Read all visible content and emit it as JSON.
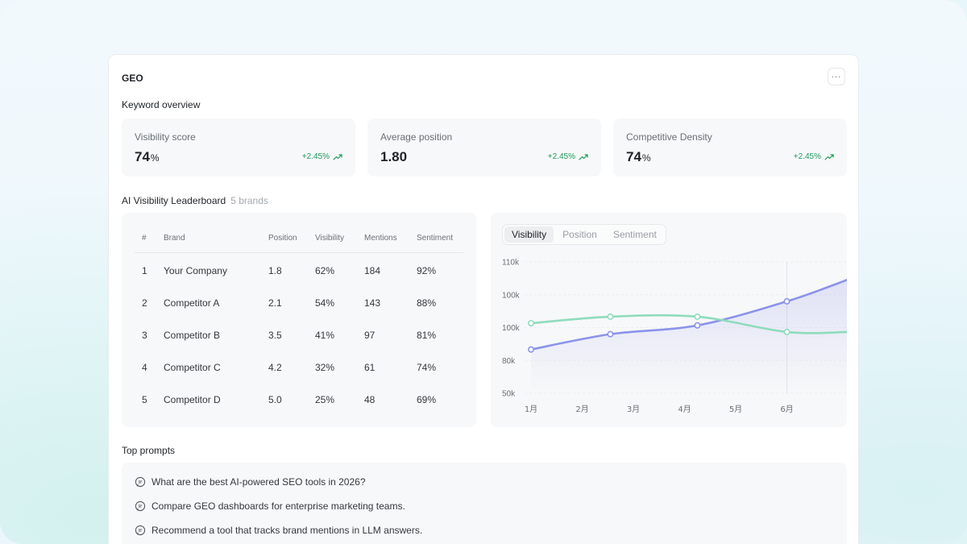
{
  "card": {
    "title": "GEO",
    "more_label": "···"
  },
  "keyword_overview": {
    "title": "Keyword overview",
    "stats": [
      {
        "label": "Visibility score",
        "value": "74",
        "unit": "%",
        "change": "+2.45%"
      },
      {
        "label": "Average position",
        "value": "1.80",
        "unit": "",
        "change": "+2.45%"
      },
      {
        "label": "Competitive Density",
        "value": "74",
        "unit": "%",
        "change": "+2.45%"
      }
    ]
  },
  "leaderboard": {
    "title": "AI Visibility Leaderboard",
    "subtitle": "5 brands",
    "columns": [
      "#",
      "Brand",
      "Position",
      "Visibility",
      "Mentions",
      "Sentiment"
    ],
    "rows": [
      {
        "num": "1",
        "brand": "Your Company",
        "position": "1.8",
        "visibility": "62%",
        "mentions": "184",
        "sentiment": "92%"
      },
      {
        "num": "2",
        "brand": "Competitor A",
        "position": "2.1",
        "visibility": "54%",
        "mentions": "143",
        "sentiment": "88%"
      },
      {
        "num": "3",
        "brand": "Competitor B",
        "position": "3.5",
        "visibility": "41%",
        "mentions": "97",
        "sentiment": "81%"
      },
      {
        "num": "4",
        "brand": "Competitor C",
        "position": "4.2",
        "visibility": "32%",
        "mentions": "61",
        "sentiment": "74%"
      },
      {
        "num": "5",
        "brand": "Competitor D",
        "position": "5.0",
        "visibility": "25%",
        "mentions": "48",
        "sentiment": "69%"
      }
    ]
  },
  "chart_tabs": [
    "Visibility",
    "Position",
    "Sentiment"
  ],
  "chart_data": {
    "type": "line",
    "y_tick_labels": [
      "110k",
      "100k",
      "100k",
      "80k",
      "50k"
    ],
    "x": [
      "1月",
      "2月",
      "3月",
      "4月",
      "5月",
      "6月"
    ],
    "x_positions": [
      1,
      2,
      3,
      4,
      5,
      6
    ],
    "ylim": [
      50,
      110
    ],
    "grid": true,
    "highlight_x": 6,
    "series": [
      {
        "color": "#8b93ea",
        "points": [
          [
            1,
            70
          ],
          [
            2.55,
            77
          ],
          [
            4.25,
            81
          ],
          [
            6,
            92
          ],
          [
            7.2,
            102
          ]
        ]
      },
      {
        "color": "#8fdcbc",
        "points": [
          [
            1,
            82
          ],
          [
            2.55,
            85
          ],
          [
            4.25,
            85
          ],
          [
            6,
            78
          ],
          [
            7.2,
            78
          ]
        ]
      }
    ]
  },
  "prompts": {
    "title": "Top prompts",
    "items": [
      "What are the best AI-powered SEO tools in 2026?",
      "Compare GEO dashboards for enterprise marketing teams.",
      "Recommend a tool that tracks brand mentions in LLM answers."
    ]
  },
  "colors": {
    "positive": "#1f9a5c",
    "series_a": "#8b93ea",
    "series_b": "#8fdcbc"
  },
  "icons": {
    "more": "ellipsis-icon",
    "trend": "trend-up-icon",
    "prompt": "chat-bubble-icon"
  }
}
